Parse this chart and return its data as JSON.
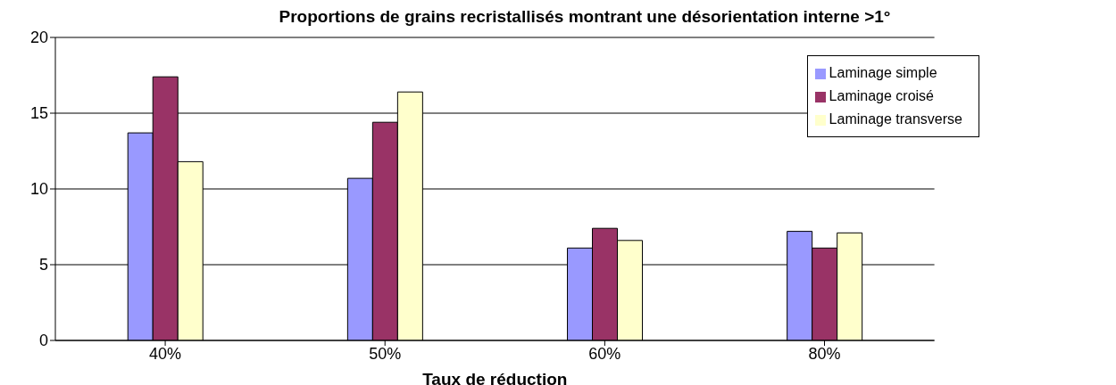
{
  "chart_data": {
    "type": "bar",
    "title": "Proportions de grains recristallisés montrant une désorientation interne >1°",
    "xlabel": "Taux de réduction",
    "categories": [
      "40%",
      "50%",
      "60%",
      "80%"
    ],
    "series": [
      {
        "name": "Laminage simple",
        "color": "#9999ff",
        "values": [
          13.7,
          10.7,
          6.1,
          7.2
        ]
      },
      {
        "name": "Laminage croisé",
        "color": "#993366",
        "values": [
          17.4,
          14.4,
          7.4,
          6.1
        ]
      },
      {
        "name": "Laminage transverse",
        "color": "#ffffcc",
        "values": [
          11.8,
          16.4,
          6.6,
          7.1
        ]
      }
    ],
    "ylim": [
      0,
      20
    ],
    "yticks": [
      0,
      5,
      10,
      15,
      20
    ],
    "grid": "y",
    "legend": "top right"
  }
}
